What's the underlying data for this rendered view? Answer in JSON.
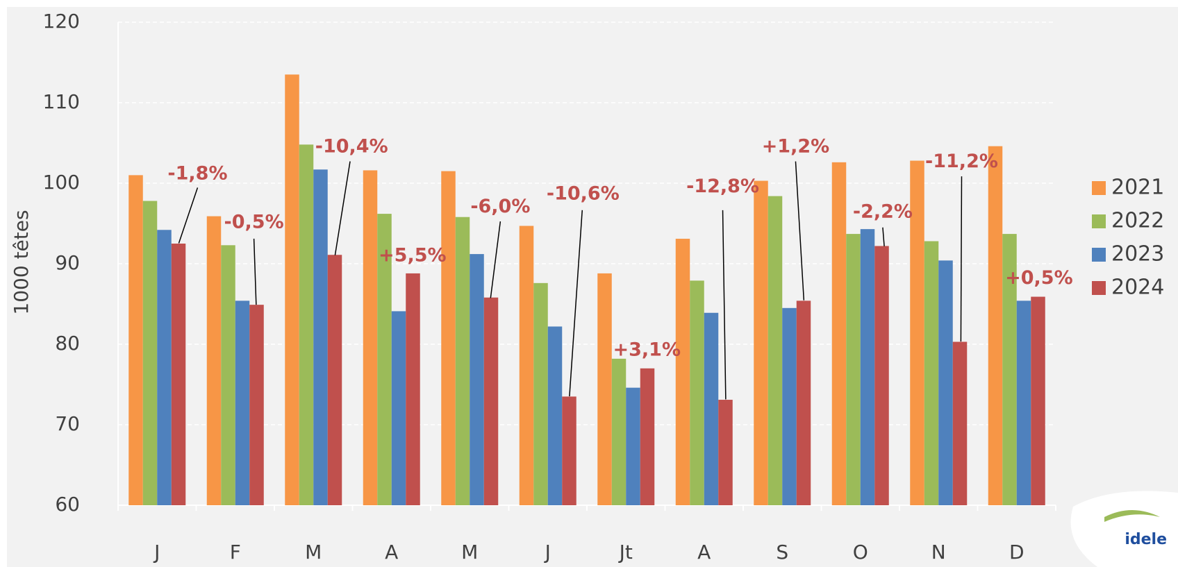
{
  "chart_data": {
    "type": "bar",
    "y_label": "1000 têtes",
    "categories": [
      "J",
      "F",
      "M",
      "A",
      "M",
      "J",
      "Jt",
      "A",
      "S",
      "O",
      "N",
      "D"
    ],
    "series": [
      {
        "name": "2021",
        "color": "#f79646",
        "values": [
          101.0,
          95.9,
          113.5,
          101.6,
          101.5,
          94.7,
          88.8,
          93.1,
          100.3,
          102.6,
          102.8,
          104.6
        ]
      },
      {
        "name": "2022",
        "color": "#9bbb59",
        "values": [
          97.8,
          92.3,
          104.8,
          96.2,
          95.8,
          87.6,
          78.2,
          87.9,
          98.4,
          93.7,
          92.8,
          93.7
        ]
      },
      {
        "name": "2023",
        "color": "#4f81bd",
        "values": [
          94.2,
          85.4,
          101.7,
          84.1,
          91.2,
          82.2,
          74.6,
          83.9,
          84.5,
          94.3,
          90.4,
          85.4
        ]
      },
      {
        "name": "2024",
        "color": "#c0504d",
        "values": [
          92.5,
          84.9,
          91.1,
          88.8,
          85.8,
          73.5,
          77.0,
          73.1,
          85.4,
          92.2,
          80.3,
          85.9
        ]
      }
    ],
    "annotations": [
      "-1,8%",
      "-0,5%",
      "-10,4%",
      "+5,5%",
      "-6,0%",
      "-10,6%",
      "+3,1%",
      "-12,8%",
      "+1,2%",
      "-2,2%",
      "-11,2%",
      "+0,5%"
    ],
    "ylim": [
      60,
      120
    ],
    "yticks": [
      60,
      70,
      80,
      90,
      100,
      110,
      120
    ],
    "grid": true,
    "legend": "right",
    "logo": "idele"
  }
}
